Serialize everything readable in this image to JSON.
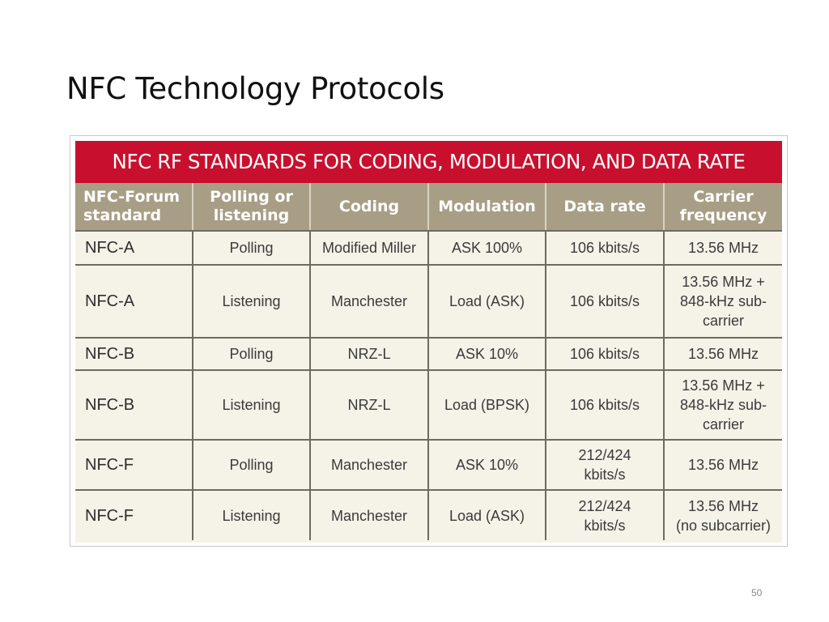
{
  "slide": {
    "title": "NFC Technology Protocols",
    "page_number": "50"
  },
  "table": {
    "banner": "NFC RF STANDARDS FOR CODING, MODULATION, AND DATA RATE",
    "colors": {
      "banner": "#c8102e",
      "header": "#a79e85",
      "body": "#f5f2e8"
    },
    "headers": [
      "NFC-Forum\nstandard",
      "Polling or\nlistening",
      "Coding",
      "Modulation",
      "Data rate",
      "Carrier\nfrequency"
    ],
    "rows": [
      [
        "NFC-A",
        "Polling",
        "Modified Miller",
        "ASK 100%",
        "106 kbits/s",
        "13.56 MHz"
      ],
      [
        "NFC-A",
        "Listening",
        "Manchester",
        "Load (ASK)",
        "106 kbits/s",
        "13.56 MHz +\n848-kHz sub-\ncarrier"
      ],
      [
        "NFC-B",
        "Polling",
        "NRZ-L",
        "ASK 10%",
        "106 kbits/s",
        "13.56 MHz"
      ],
      [
        "NFC-B",
        "Listening",
        "NRZ-L",
        "Load (BPSK)",
        "106 kbits/s",
        "13.56 MHz +\n848-kHz sub-\ncarrier"
      ],
      [
        "NFC-F",
        "Polling",
        "Manchester",
        "ASK 10%",
        "212/424\nkbits/s",
        "13.56 MHz"
      ],
      [
        "NFC-F",
        "Listening",
        "Manchester",
        "Load (ASK)",
        "212/424\nkbits/s",
        "13.56 MHz\n(no subcarrier)"
      ]
    ]
  }
}
